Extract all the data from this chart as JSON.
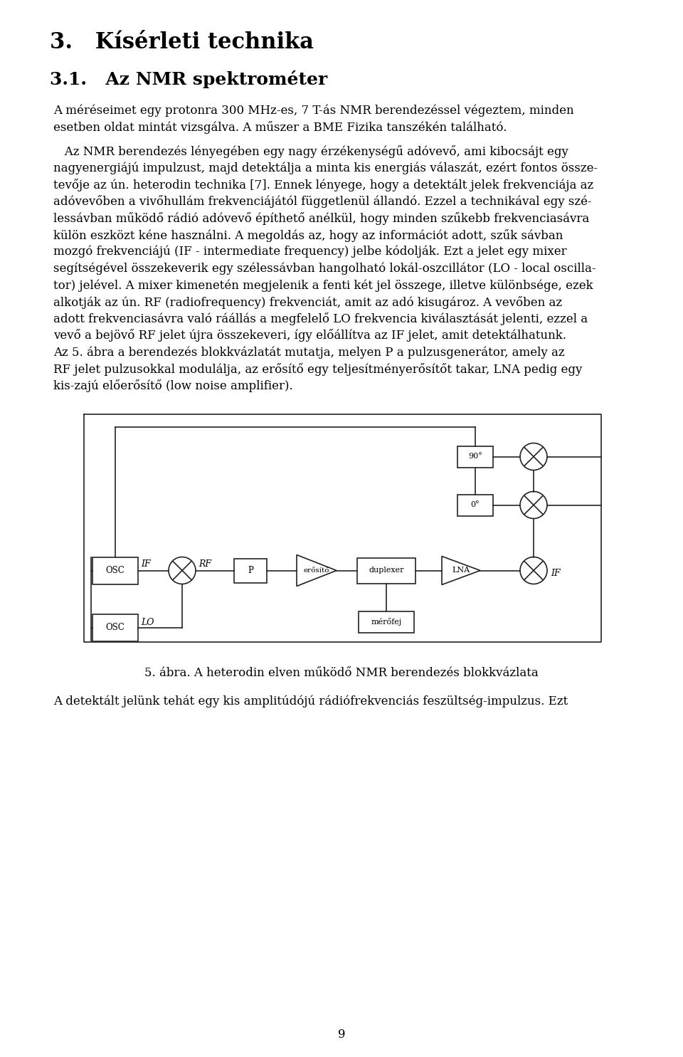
{
  "title1": "3.   Kísérleti technika",
  "title2": "3.1.   Az NMR spektrométer",
  "para1_lines": [
    "A méréseimet egy protonra 300 MHz-es, 7 T-ás NMR berendezéssel végeztem, minden",
    "esetben oldat mintát vizsgálva. A műszer a BME Fizika tanszékén található."
  ],
  "para2_lines": [
    "   Az NMR berendezés lényegében egy nagy érzékenységű adóvevő, ami kibocsájt egy",
    "nagyenergiájú impulzust, majd detektálja a minta kis energiás válaszát, ezért fontos össze-",
    "tevője az ún. heterodin technika [7]. Ennek lényege, hogy a detektált jelek frekvenciája az",
    "adóvevőben a vivőhullám frekvenciájától függetlenül állandó. Ezzel a technikával egy szé-",
    "lessávban működő rádió adóvevő építhető anélkül, hogy minden szűkebb frekvenciasávra",
    "külön eszközt kéne használni. A megoldás az, hogy az információt adott, szűk sávban",
    "mozgó frekvenciájú (IF - intermediate frequency) jelbe kódolják. Ezt a jelet egy mixer",
    "segítségével összekeverik egy szélessávban hangolható lokál-oszcillátor (LO - local oscilla-",
    "tor) jelével. A mixer kimenetén megjelenik a fenti két jel összege, illetve különbsége, ezek",
    "alkotják az ún. RF (radiofrequency) frekvenciát, amit az adó kisugároz. A vevőben az",
    "adott frekvenciasávra való ráállás a megfelelő LO frekvencia kiválasztását jelenti, ezzel a",
    "vevő a bejövő RF jelet újra összekeveri, így előállítva az IF jelet, amit detektálhatunk.",
    "Az 5. ábra a berendezés blokkvázlatát mutatja, melyen P a pulzusgenerátor, amely az",
    "RF jelet pulzusokkal modulálja, az erősítő egy teljesítményerősítőt takar, LNA pedig egy",
    "kis-zajú előerősítő (low noise amplifier)."
  ],
  "caption": "5. ábra. A heterodin elven működő NMR berendezés blokkvázlata",
  "para3": "A detektált jelünk tehát egy kis amplitúdójú rádiófrekvenciás feszültség-impulzus. Ezt",
  "page_num": "9",
  "bg_color": "#ffffff",
  "text_color": "#000000",
  "diagram_color": "#222222"
}
